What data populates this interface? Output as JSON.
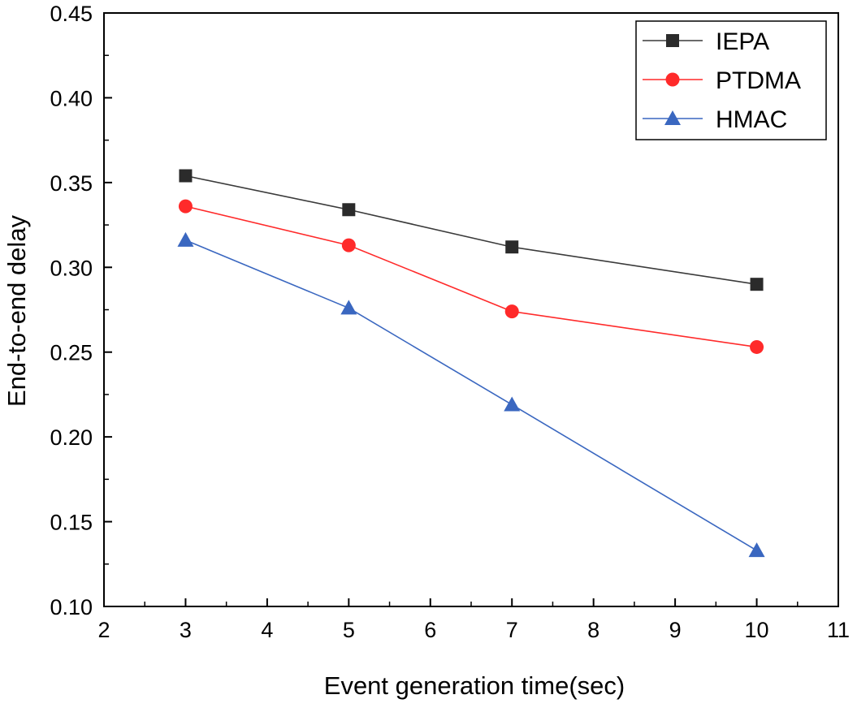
{
  "chart_data": {
    "type": "line",
    "title": "",
    "xlabel": "Event generation time(sec)",
    "ylabel": "End-to-end delay",
    "xlim": [
      2,
      11
    ],
    "ylim": [
      0.1,
      0.45
    ],
    "xticks": [
      2,
      3,
      4,
      5,
      6,
      7,
      8,
      9,
      10,
      11
    ],
    "yticks": [
      0.1,
      0.15,
      0.2,
      0.25,
      0.3,
      0.35,
      0.4,
      0.45
    ],
    "x": [
      3,
      5,
      7,
      10
    ],
    "series": [
      {
        "name": "IEPA",
        "values": [
          0.354,
          0.334,
          0.312,
          0.29
        ],
        "color": "#2b2b2b",
        "line_color": "#3a3a3a",
        "marker": "square"
      },
      {
        "name": "PTDMA",
        "values": [
          0.336,
          0.313,
          0.274,
          0.253
        ],
        "color": "#ff2a2a",
        "line_color": "#ff2a2a",
        "marker": "circle"
      },
      {
        "name": "HMAC",
        "values": [
          0.316,
          0.276,
          0.219,
          0.133
        ],
        "color": "#3a67c0",
        "line_color": "#3a67c0",
        "marker": "triangle"
      }
    ],
    "legend_position": "top-right",
    "grid": false
  }
}
